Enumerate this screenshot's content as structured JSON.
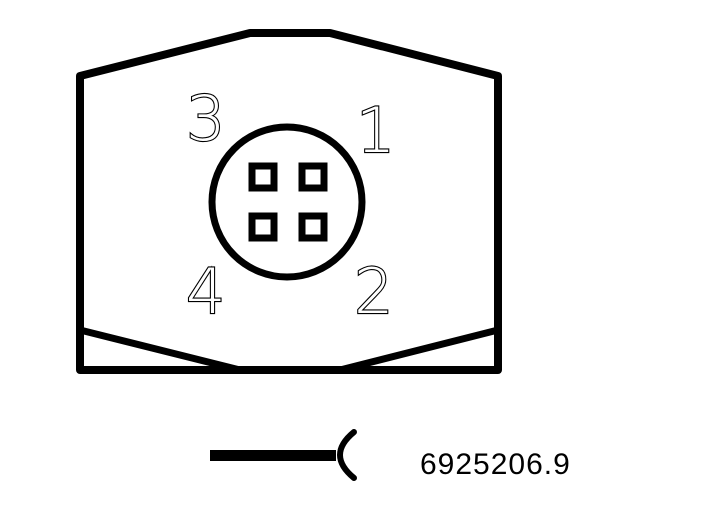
{
  "connector": {
    "pin_labels": {
      "pin1": "1",
      "pin2": "2",
      "pin3": "3",
      "pin4": "4"
    },
    "pin_count": 4
  },
  "part_number": "6925206.9",
  "colors": {
    "line": "#000000",
    "background": "#ffffff"
  }
}
